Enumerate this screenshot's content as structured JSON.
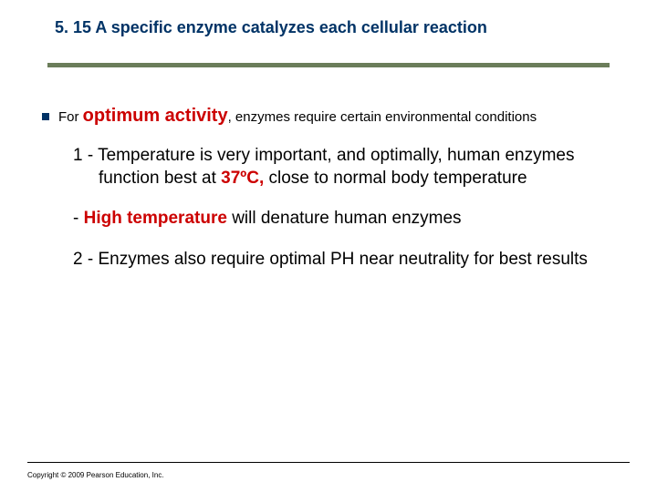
{
  "title": "5. 15 A specific enzyme catalyzes each cellular reaction",
  "bullet": {
    "pre": "For ",
    "emph": "optimum activity",
    "post": ", enzymes require certain environmental conditions"
  },
  "items": [
    {
      "prefix": "1 - ",
      "pre": "Temperature is very important, and optimally, human enzymes function best at ",
      "emph": "37ºC,",
      "post": " close to normal body temperature"
    },
    {
      "prefix": "- ",
      "pre": "",
      "emph": "High temperature",
      "post": " will denature human enzymes"
    },
    {
      "prefix": "2 - ",
      "pre": "Enzymes also require optimal PH  near neutrality for best results",
      "emph": "",
      "post": ""
    }
  ],
  "copyright": "Copyright © 2009 Pearson Education, Inc.",
  "colors": {
    "title": "#003366",
    "rule": "#6b7d5a",
    "emphasis": "#cc0000",
    "text": "#000000",
    "background": "#ffffff"
  }
}
